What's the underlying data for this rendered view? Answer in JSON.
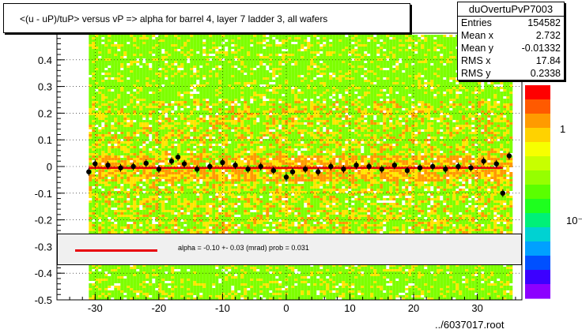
{
  "chart_data": {
    "type": "scatter",
    "title": "<(u - uP)/tuP> versus   vP => alpha for barrel 4, layer 7 ladder 3, all wafers",
    "xlim": [
      -36,
      37
    ],
    "ylim": [
      -0.5,
      0.5
    ],
    "x_ticks": [
      -30,
      -20,
      -10,
      0,
      10,
      20,
      30
    ],
    "y_ticks": [
      -0.5,
      -0.4,
      -0.3,
      -0.2,
      -0.1,
      0,
      0.1,
      0.2,
      0.3,
      0.4
    ],
    "y_tick_labels": [
      "-0.5",
      "-0.4",
      "-0.3",
      "-0.2",
      "-0.1",
      "0",
      "0.1",
      "0.2",
      "0.3",
      "0.4"
    ],
    "x_tick_labels": [
      "-30",
      "-20",
      "-10",
      "0",
      "10",
      "20",
      "30"
    ],
    "colorbar_labels": [
      "1",
      "10⁻¹"
    ],
    "profile_points": [
      {
        "x": -31,
        "y": -0.02
      },
      {
        "x": -30,
        "y": 0.01
      },
      {
        "x": -28,
        "y": 0.005
      },
      {
        "x": -26,
        "y": -0.005
      },
      {
        "x": -24,
        "y": 0.0
      },
      {
        "x": -22,
        "y": 0.012
      },
      {
        "x": -20,
        "y": -0.01
      },
      {
        "x": -18,
        "y": 0.02
      },
      {
        "x": -17,
        "y": 0.035
      },
      {
        "x": -16,
        "y": 0.01
      },
      {
        "x": -14,
        "y": -0.01
      },
      {
        "x": -12,
        "y": 0.0
      },
      {
        "x": -10,
        "y": 0.015
      },
      {
        "x": -8,
        "y": 0.005
      },
      {
        "x": -6,
        "y": -0.01
      },
      {
        "x": -4,
        "y": 0.0
      },
      {
        "x": -2,
        "y": -0.015
      },
      {
        "x": 0,
        "y": -0.04
      },
      {
        "x": 1,
        "y": -0.02
      },
      {
        "x": 3,
        "y": -0.01
      },
      {
        "x": 5,
        "y": -0.02
      },
      {
        "x": 7,
        "y": 0.0
      },
      {
        "x": 9,
        "y": -0.01
      },
      {
        "x": 11,
        "y": 0.005
      },
      {
        "x": 13,
        "y": 0.0
      },
      {
        "x": 15,
        "y": -0.01
      },
      {
        "x": 17,
        "y": 0.005
      },
      {
        "x": 19,
        "y": -0.015
      },
      {
        "x": 21,
        "y": -0.005
      },
      {
        "x": 23,
        "y": 0.0
      },
      {
        "x": 25,
        "y": -0.01
      },
      {
        "x": 27,
        "y": 0.0
      },
      {
        "x": 29,
        "y": -0.005
      },
      {
        "x": 31,
        "y": 0.02
      },
      {
        "x": 33,
        "y": 0.01
      },
      {
        "x": 34,
        "y": -0.1
      },
      {
        "x": 35,
        "y": 0.04
      }
    ],
    "fit_line": {
      "y": -0.005,
      "x_from": -31,
      "x_to": 34,
      "color": "#e8000b"
    },
    "colors": {
      "fill_green": "#7dff00",
      "fill_yellow": "#ffe600",
      "fill_orange": "#ff9900",
      "points": "#000000"
    }
  },
  "stats": {
    "name": "duOvertuPvP7003",
    "rows": [
      {
        "label": "Entries",
        "value": "154582"
      },
      {
        "label": "Mean x",
        "value": "2.732"
      },
      {
        "label": "Mean y",
        "value": "-0.01332"
      },
      {
        "label": "RMS x",
        "value": "17.84"
      },
      {
        "label": "RMS y",
        "value": "0.2338"
      }
    ]
  },
  "legend": {
    "text": "alpha =   -0.10 +-  0.03 (mrad) prob = 0.031"
  },
  "file_label": "../6037017.root"
}
